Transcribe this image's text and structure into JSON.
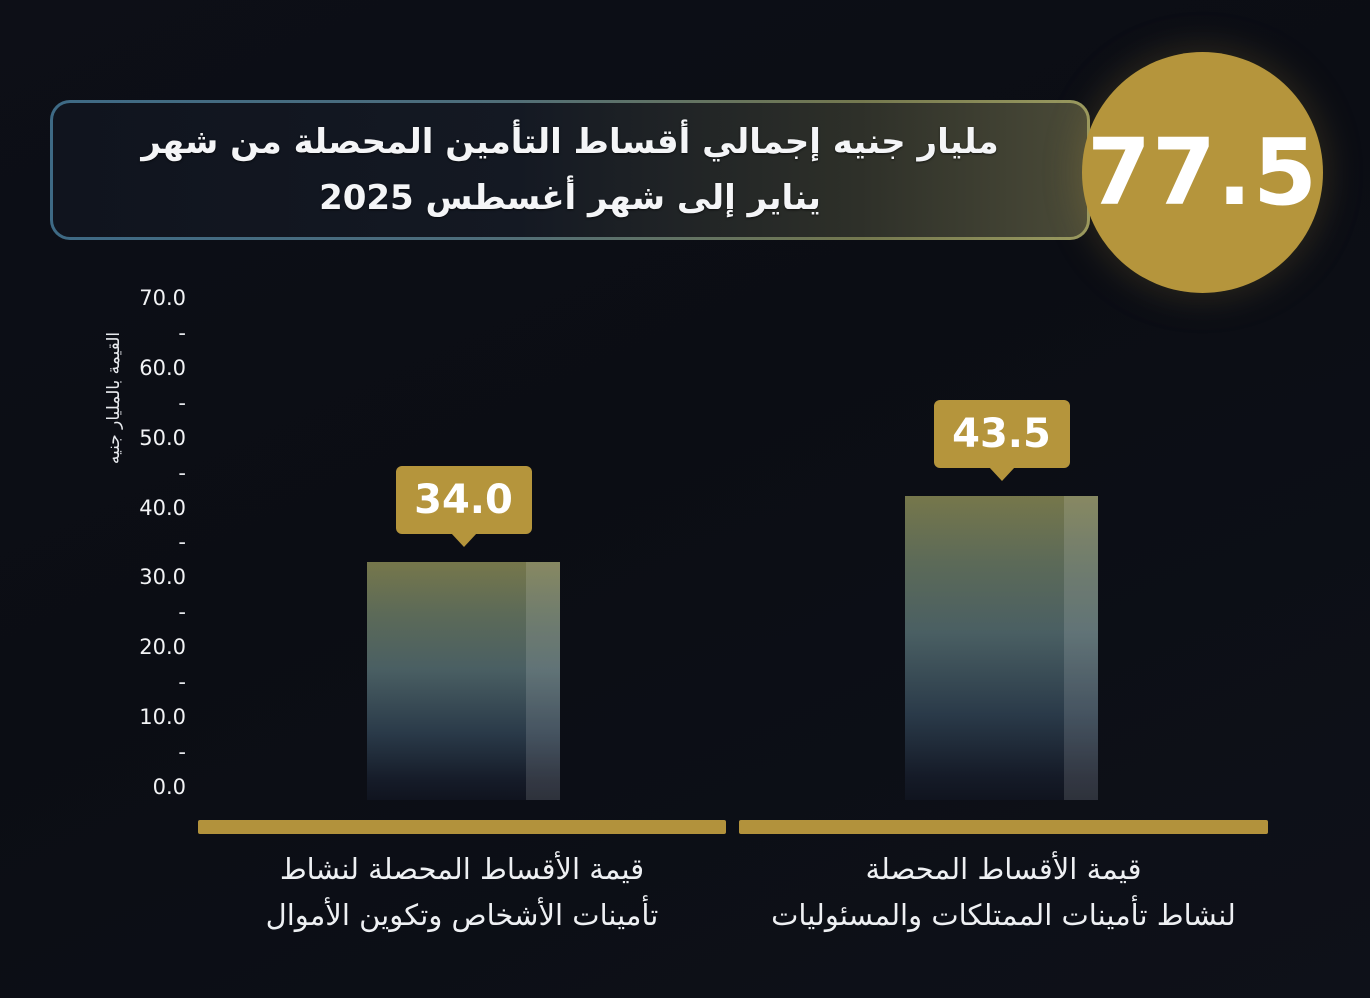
{
  "header": {
    "badge_value": "77.5",
    "title_line1": "مليار جنيه إجمالي أقساط التأمين المحصلة من شهر",
    "title_line2": "يناير إلى شهر أغسطس 2025"
  },
  "y_axis": {
    "title": "القيمة بالمليار جنيه",
    "ticks": [
      "70.0",
      "-",
      "60.0",
      "-",
      "50.0",
      "-",
      "40.0",
      "-",
      "30.0",
      "-",
      "20.0",
      "-",
      "10.0",
      "-",
      "0.0"
    ]
  },
  "bars": [
    {
      "value_label": "34.0",
      "category_line1": "قيمة الأقساط المحصلة لنشاط",
      "category_line2": "تأمينات الأشخاص وتكوين الأموال"
    },
    {
      "value_label": "43.5",
      "category_line1": "قيمة الأقساط المحصلة",
      "category_line2": "لنشاط تأمينات الممتلكات والمسئوليات"
    }
  ],
  "colors": {
    "background": "#0d0f17",
    "gold": "#b5953c",
    "axis_gold": "#b2923c",
    "border_teal": "#3e6a85",
    "bar_top": "#76774b",
    "bar_mid": "#4a5f63",
    "bar_bottom": "#10141f",
    "text": "#ffffff"
  },
  "chart_data": {
    "type": "bar",
    "title": "77.5 مليار جنيه إجمالي أقساط التأمين المحصلة من شهر يناير إلى شهر أغسطس 2025",
    "total_badge": 77.5,
    "categories": [
      "قيمة الأقساط المحصلة لنشاط تأمينات الأشخاص وتكوين الأموال",
      "قيمة الأقساط المحصلة لنشاط تأمينات الممتلكات والمسئوليات"
    ],
    "values": [
      34.0,
      43.5
    ],
    "data_labels": [
      "34.0",
      "43.5"
    ],
    "xlabel": "",
    "ylabel": "القيمة بالمليار جنيه",
    "ylim": [
      0,
      70
    ],
    "y_tick_step": 10,
    "grid": false,
    "legend": false,
    "orientation": "vertical"
  }
}
